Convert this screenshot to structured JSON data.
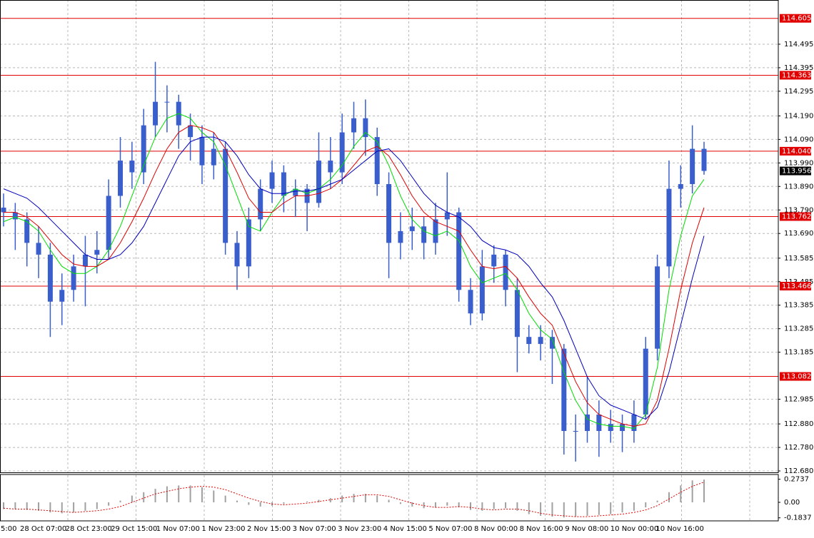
{
  "chart_data": {
    "type": "candlestick",
    "candle_color": "#3a5fcd",
    "ylim": [
      112.674,
      114.683
    ],
    "yticks": [
      114.495,
      114.395,
      114.295,
      {
        "value": 114.19,
        "label": "114.190"
      },
      {
        "value": 114.09,
        "label": "114.090"
      },
      {
        "value": 113.99,
        "label": "113.990"
      },
      {
        "value": 113.89,
        "label": "113.890"
      },
      {
        "value": 113.79,
        "label": "113.790"
      },
      {
        "value": 113.69,
        "label": "113.690"
      },
      113.585,
      113.485,
      113.385,
      113.285,
      113.185,
      112.985,
      {
        "value": 112.88,
        "label": "112.880"
      },
      {
        "value": 112.78,
        "label": "112.780"
      },
      {
        "value": 112.68,
        "label": "112.680"
      }
    ],
    "grid": true,
    "categories": [
      "5:00",
      "28 Oct 07:00",
      "28 Oct 23:00",
      "29 Oct 15:00",
      "1 Nov 07:00",
      "1 Nov 23:00",
      "2 Nov 15:00",
      "3 Nov 07:00",
      "3 Nov 23:00",
      "4 Nov 15:00",
      "5 Nov 07:00",
      "8 Nov 00:00",
      "8 Nov 16:00",
      "9 Nov 08:00",
      "10 Nov 00:00",
      "10 Nov 16:00"
    ],
    "levels": {
      "color": "#e00000",
      "values": [
        114.605,
        114.363,
        114.04,
        113.762,
        113.466,
        113.082
      ],
      "value_labels": [
        "114.605",
        "114.363",
        "114.040",
        "113.762",
        "113.466",
        "113.082"
      ]
    },
    "last_price": 113.956,
    "candles": [
      [
        113.8,
        113.86,
        113.72,
        113.78
      ],
      [
        113.78,
        113.82,
        113.62,
        113.75
      ],
      [
        113.75,
        113.78,
        113.55,
        113.65
      ],
      [
        113.65,
        113.72,
        113.5,
        113.6
      ],
      [
        113.6,
        113.65,
        113.25,
        113.4
      ],
      [
        113.4,
        113.52,
        113.3,
        113.45
      ],
      [
        113.45,
        113.6,
        113.4,
        113.55
      ],
      [
        113.55,
        113.68,
        113.38,
        113.6
      ],
      [
        113.6,
        113.7,
        113.52,
        113.62
      ],
      [
        113.62,
        113.92,
        113.58,
        113.85
      ],
      [
        113.85,
        114.1,
        113.8,
        114.0
      ],
      [
        114.0,
        114.08,
        113.88,
        113.95
      ],
      [
        113.95,
        114.22,
        113.9,
        114.15
      ],
      [
        114.15,
        114.42,
        114.1,
        114.25
      ],
      [
        114.25,
        114.32,
        114.12,
        114.25
      ],
      [
        114.25,
        114.28,
        114.05,
        114.15
      ],
      [
        114.15,
        114.2,
        114.0,
        114.1
      ],
      [
        114.1,
        114.15,
        113.9,
        113.98
      ],
      [
        113.98,
        114.12,
        113.92,
        114.05
      ],
      [
        114.05,
        114.08,
        113.6,
        113.65
      ],
      [
        113.65,
        113.7,
        113.45,
        113.55
      ],
      [
        113.55,
        113.8,
        113.5,
        113.75
      ],
      [
        113.75,
        113.92,
        113.7,
        113.88
      ],
      [
        113.88,
        114.0,
        113.82,
        113.95
      ],
      [
        113.95,
        113.98,
        113.78,
        113.85
      ],
      [
        113.85,
        113.92,
        113.76,
        113.88
      ],
      [
        113.88,
        113.9,
        113.7,
        113.82
      ],
      [
        113.82,
        114.12,
        113.8,
        114.0
      ],
      [
        114.0,
        114.1,
        113.88,
        113.95
      ],
      [
        113.95,
        114.2,
        113.9,
        114.12
      ],
      [
        114.12,
        114.25,
        114.05,
        114.18
      ],
      [
        114.18,
        114.26,
        114.02,
        114.1
      ],
      [
        114.1,
        114.14,
        113.85,
        113.9
      ],
      [
        113.9,
        113.95,
        113.5,
        113.65
      ],
      [
        113.65,
        113.78,
        113.58,
        113.7
      ],
      [
        113.7,
        113.8,
        113.62,
        113.72
      ],
      [
        113.72,
        113.76,
        113.58,
        113.65
      ],
      [
        113.65,
        113.82,
        113.6,
        113.75
      ],
      [
        113.75,
        113.95,
        113.68,
        113.78
      ],
      [
        113.78,
        113.8,
        113.4,
        113.45
      ],
      [
        113.45,
        113.5,
        113.3,
        113.35
      ],
      [
        113.35,
        113.62,
        113.32,
        113.55
      ],
      [
        113.55,
        113.64,
        113.48,
        113.6
      ],
      [
        113.6,
        113.62,
        113.38,
        113.45
      ],
      [
        113.45,
        113.5,
        113.1,
        113.25
      ],
      [
        113.25,
        113.3,
        113.18,
        113.22
      ],
      [
        113.22,
        113.3,
        113.15,
        113.25
      ],
      [
        113.25,
        113.28,
        113.05,
        113.2
      ],
      [
        113.2,
        113.22,
        112.75,
        112.85
      ],
      [
        112.85,
        112.92,
        112.72,
        112.85
      ],
      [
        112.85,
        113.08,
        112.8,
        112.92
      ],
      [
        112.92,
        112.98,
        112.74,
        112.85
      ],
      [
        112.85,
        112.94,
        112.8,
        112.88
      ],
      [
        112.88,
        112.92,
        112.76,
        112.85
      ],
      [
        112.85,
        112.98,
        112.8,
        112.92
      ],
      [
        112.92,
        113.25,
        112.9,
        113.2
      ],
      [
        113.2,
        113.6,
        113.15,
        113.55
      ],
      [
        113.55,
        114.0,
        113.5,
        113.88
      ],
      [
        113.88,
        113.98,
        113.8,
        113.9
      ],
      [
        113.9,
        114.15,
        113.86,
        114.05
      ],
      [
        114.05,
        114.08,
        113.94,
        113.956
      ]
    ],
    "ma": [
      {
        "color": "#00dd00",
        "values": [
          113.74,
          113.76,
          113.74,
          113.7,
          113.62,
          113.55,
          113.52,
          113.52,
          113.55,
          113.62,
          113.72,
          113.85,
          113.98,
          114.1,
          114.18,
          114.2,
          114.18,
          114.12,
          114.08,
          113.98,
          113.85,
          113.72,
          113.7,
          113.78,
          113.85,
          113.88,
          113.86,
          113.88,
          113.92,
          113.98,
          114.06,
          114.12,
          114.08,
          113.98,
          113.85,
          113.75,
          113.7,
          113.68,
          113.7,
          113.66,
          113.55,
          113.48,
          113.5,
          113.52,
          113.45,
          113.35,
          113.28,
          113.24,
          113.1,
          112.98,
          112.9,
          112.88,
          112.87,
          112.87,
          112.86,
          112.92,
          113.12,
          113.45,
          113.68,
          113.85,
          113.92
        ]
      },
      {
        "color": "#dd0000",
        "values": [
          113.78,
          113.78,
          113.76,
          113.72,
          113.66,
          113.6,
          113.56,
          113.55,
          113.55,
          113.58,
          113.65,
          113.74,
          113.84,
          113.95,
          114.05,
          114.12,
          114.15,
          114.14,
          114.12,
          114.05,
          113.95,
          113.84,
          113.78,
          113.78,
          113.82,
          113.85,
          113.85,
          113.86,
          113.88,
          113.92,
          113.98,
          114.04,
          114.06,
          114.02,
          113.94,
          113.85,
          113.78,
          113.74,
          113.72,
          113.7,
          113.62,
          113.55,
          113.54,
          113.55,
          113.5,
          113.42,
          113.35,
          113.3,
          113.18,
          113.06,
          112.97,
          112.92,
          112.9,
          112.88,
          112.87,
          112.88,
          112.98,
          113.2,
          113.45,
          113.65,
          113.8
        ]
      },
      {
        "color": "#0000bb",
        "values": [
          113.88,
          113.86,
          113.84,
          113.8,
          113.75,
          113.7,
          113.65,
          113.6,
          113.58,
          113.58,
          113.6,
          113.65,
          113.72,
          113.82,
          113.92,
          114.02,
          114.08,
          114.1,
          114.1,
          114.08,
          114.02,
          113.94,
          113.88,
          113.86,
          113.86,
          113.87,
          113.87,
          113.88,
          113.9,
          113.92,
          113.96,
          114.0,
          114.04,
          114.05,
          114.0,
          113.93,
          113.86,
          113.81,
          113.78,
          113.76,
          113.72,
          113.66,
          113.63,
          113.62,
          113.6,
          113.55,
          113.48,
          113.42,
          113.32,
          113.2,
          113.08,
          113.0,
          112.96,
          112.94,
          112.92,
          112.9,
          112.95,
          113.1,
          113.3,
          113.5,
          113.68
        ]
      }
    ],
    "oscillator": {
      "ylim": [
        -0.22,
        0.33
      ],
      "yticks": [
        0.2737,
        {
          "value": 0,
          "label": "0.00"
        },
        -0.1837
      ],
      "histogram_color": "#a0a0a0",
      "signal_color": "#dd0000",
      "histogram": [
        -0.08,
        -0.08,
        -0.09,
        -0.1,
        -0.12,
        -0.13,
        -0.12,
        -0.1,
        -0.08,
        -0.04,
        0.02,
        0.08,
        0.12,
        0.16,
        0.19,
        0.2,
        0.2,
        0.18,
        0.14,
        0.08,
        0.02,
        -0.03,
        -0.05,
        -0.04,
        -0.02,
        0.0,
        0.01,
        0.03,
        0.05,
        0.08,
        0.1,
        0.1,
        0.08,
        0.03,
        -0.02,
        -0.05,
        -0.07,
        -0.06,
        -0.04,
        -0.06,
        -0.09,
        -0.1,
        -0.08,
        -0.07,
        -0.1,
        -0.14,
        -0.16,
        -0.17,
        -0.18,
        -0.17,
        -0.16,
        -0.15,
        -0.14,
        -0.12,
        -0.1,
        -0.06,
        0.02,
        0.12,
        0.2,
        0.26,
        0.27
      ],
      "signal": [
        -0.07,
        -0.08,
        -0.08,
        -0.09,
        -0.1,
        -0.11,
        -0.12,
        -0.11,
        -0.1,
        -0.08,
        -0.05,
        0.0,
        0.05,
        0.1,
        0.13,
        0.16,
        0.18,
        0.19,
        0.18,
        0.15,
        0.1,
        0.05,
        0.01,
        -0.02,
        -0.03,
        -0.02,
        -0.01,
        0.01,
        0.03,
        0.05,
        0.07,
        0.09,
        0.09,
        0.07,
        0.03,
        -0.01,
        -0.04,
        -0.06,
        -0.06,
        -0.05,
        -0.06,
        -0.08,
        -0.09,
        -0.08,
        -0.08,
        -0.1,
        -0.13,
        -0.15,
        -0.16,
        -0.17,
        -0.17,
        -0.16,
        -0.15,
        -0.14,
        -0.12,
        -0.09,
        -0.04,
        0.04,
        0.12,
        0.19,
        0.24
      ]
    }
  }
}
